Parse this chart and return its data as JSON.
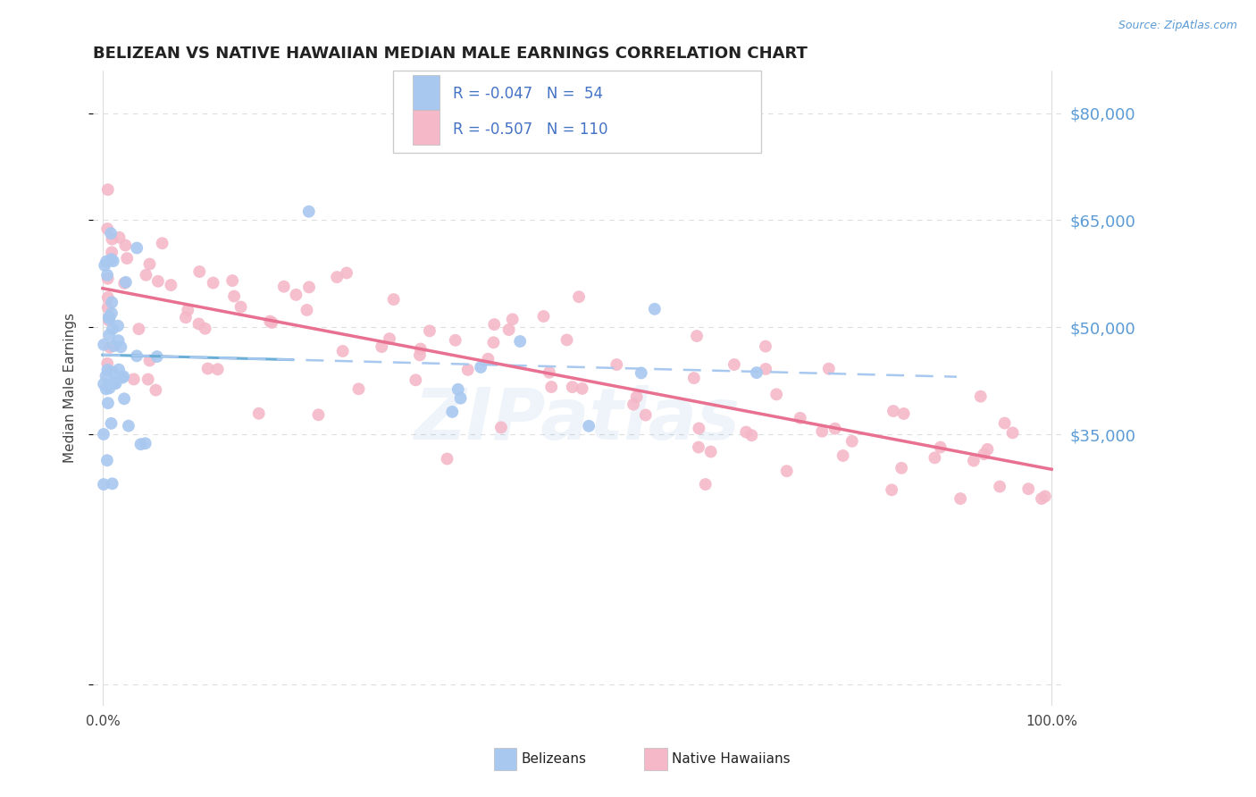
{
  "title": "BELIZEAN VS NATIVE HAWAIIAN MEDIAN MALE EARNINGS CORRELATION CHART",
  "source": "Source: ZipAtlas.com",
  "ylabel": "Median Male Earnings",
  "color_belizean": "#a8c8f0",
  "color_hawaiian": "#f4b8c8",
  "color_trend_belizean_solid": "#6baed6",
  "color_trend_belizean_dash": "#a8c8f0",
  "color_trend_hawaiian": "#e87090",
  "color_ytick": "#5b9bd5",
  "color_legend_text": "#4472c4",
  "color_title": "#222222",
  "background": "#ffffff",
  "grid_color": "#dddddd",
  "ytick_vals": [
    0,
    35000,
    50000,
    65000,
    80000
  ],
  "ytick_labels": [
    "",
    "$35,000",
    "$50,000",
    "$65,000",
    "$80,000"
  ],
  "ylim_min": -3000,
  "ylim_max": 86000,
  "xlim_min": -1,
  "xlim_max": 101
}
